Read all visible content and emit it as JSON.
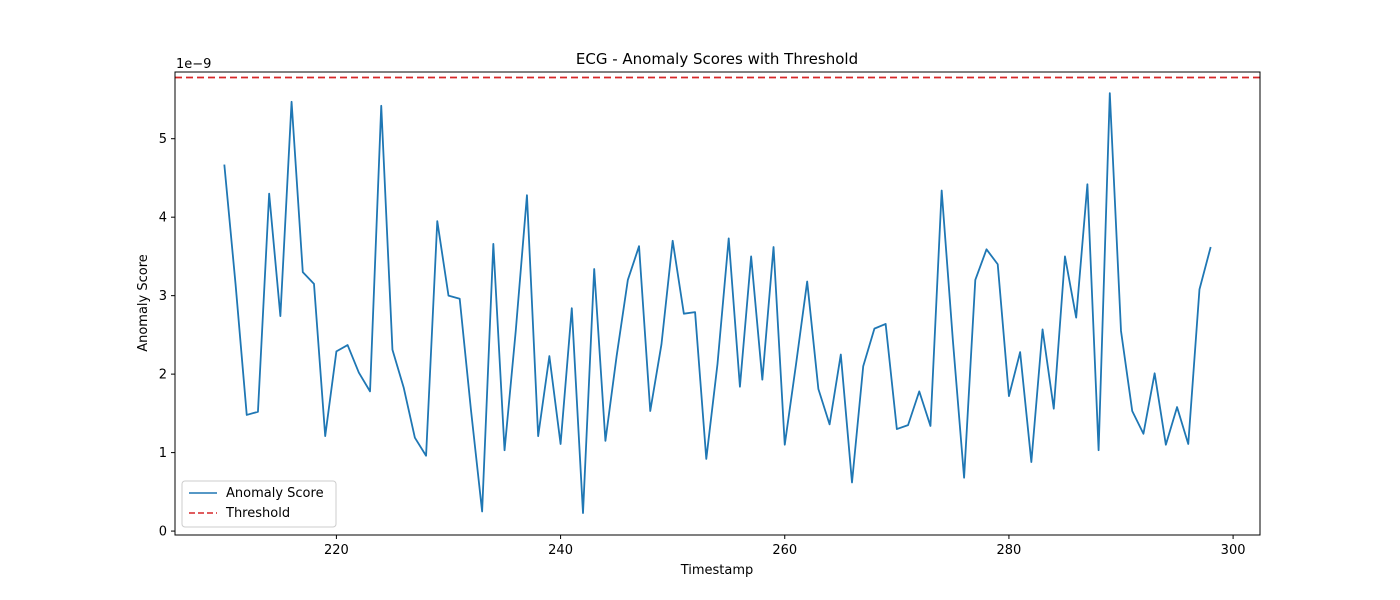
{
  "chart_data": {
    "type": "line",
    "title": "ECG - Anomaly Scores with Threshold",
    "xlabel": "Timestamp",
    "ylabel": "Anomaly Score",
    "y_multiplier_label": "1e−9",
    "xlim": [
      205.6,
      302.4
    ],
    "ylim": [
      -0.05,
      5.85
    ],
    "x_ticks": [
      220,
      240,
      260,
      280,
      300
    ],
    "y_ticks": [
      0,
      1,
      2,
      3,
      4,
      5
    ],
    "grid": false,
    "legend_position": "lower-left",
    "series": [
      {
        "name": "Anomaly Score",
        "color": "#1f77b4",
        "style": "solid",
        "x": [
          210,
          211,
          212,
          213,
          214,
          215,
          216,
          217,
          218,
          219,
          220,
          221,
          222,
          223,
          224,
          225,
          226,
          227,
          228,
          229,
          230,
          231,
          232,
          233,
          234,
          235,
          236,
          237,
          238,
          239,
          240,
          241,
          242,
          243,
          244,
          245,
          246,
          247,
          248,
          249,
          250,
          251,
          252,
          253,
          254,
          255,
          256,
          257,
          258,
          259,
          260,
          261,
          262,
          263,
          264,
          265,
          266,
          267,
          268,
          269,
          270,
          271,
          272,
          273,
          274,
          275,
          276,
          277,
          278,
          279,
          280,
          281,
          282,
          283,
          284,
          285,
          286,
          287,
          288,
          289,
          290,
          291,
          292,
          293,
          294,
          295,
          296,
          297,
          298
        ],
        "y": [
          4.67,
          3.15,
          1.48,
          1.52,
          4.3,
          2.74,
          5.47,
          3.3,
          3.15,
          1.21,
          2.29,
          2.37,
          2.02,
          1.78,
          5.42,
          2.31,
          1.83,
          1.19,
          0.96,
          3.95,
          3.0,
          2.96,
          1.55,
          0.25,
          3.66,
          1.03,
          2.55,
          4.28,
          1.21,
          2.23,
          1.11,
          2.84,
          0.23,
          3.34,
          1.15,
          2.23,
          3.2,
          3.63,
          1.53,
          2.38,
          3.7,
          2.77,
          2.79,
          0.92,
          2.13,
          3.73,
          1.84,
          3.5,
          1.93,
          3.62,
          1.1,
          2.12,
          3.18,
          1.81,
          1.36,
          2.25,
          0.62,
          2.1,
          2.58,
          2.64,
          1.3,
          1.35,
          1.78,
          1.34,
          4.34,
          2.43,
          0.68,
          3.2,
          3.59,
          3.4,
          1.72,
          2.28,
          0.88,
          2.57,
          1.56,
          3.5,
          2.72,
          4.42,
          1.03,
          5.58,
          2.55,
          1.53,
          1.24,
          2.01,
          1.1,
          1.58,
          1.11,
          3.08,
          3.62
        ]
      },
      {
        "name": "Threshold",
        "color": "#d62728",
        "style": "dashed",
        "y_constant": 5.78
      }
    ]
  }
}
